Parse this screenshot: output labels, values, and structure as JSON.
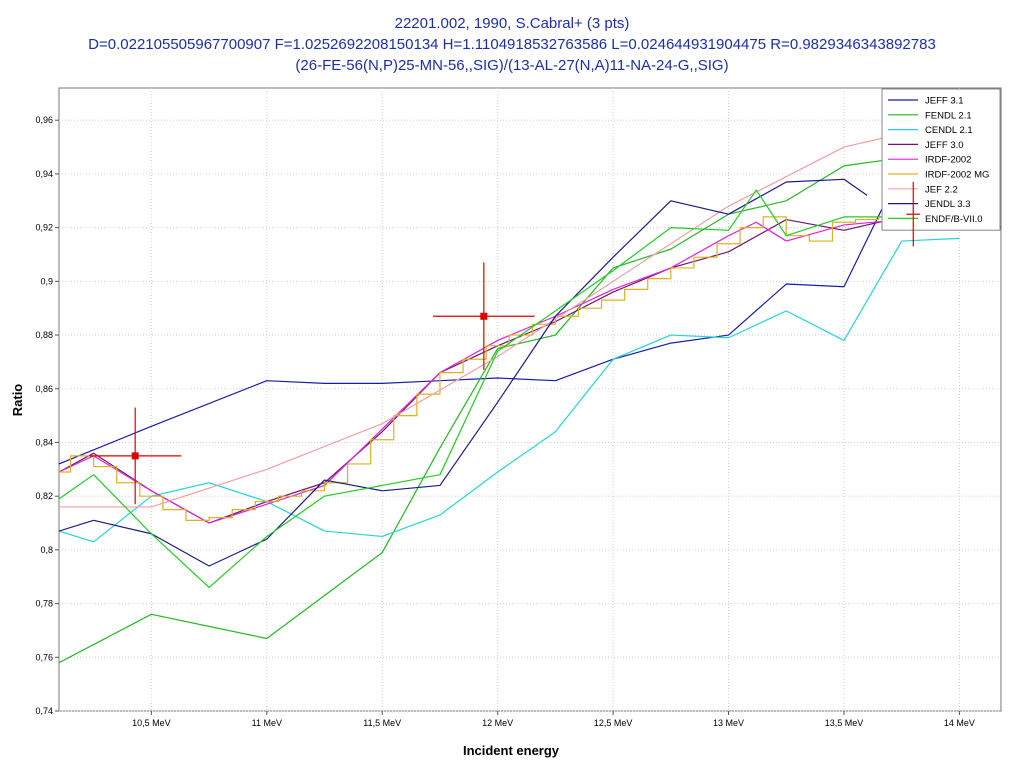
{
  "chart_data": {
    "type": "line",
    "title_lines": [
      "22201.002, 1990, S.Cabral+ (3 pts)",
      "D=0.022105505967700907 F=1.0252692208150134 H=1.1104918532763586 L=0.024644931904475 R=0.9829346343892783",
      "(26-FE-56(N,P)25-MN-56,,SIG)/(13-AL-27(N,A)11-NA-24-G,,SIG)"
    ],
    "xlabel": "Incident energy",
    "ylabel": "Ratio",
    "x_unit": "MeV",
    "xlim": [
      10.1,
      14.18
    ],
    "ylim": [
      0.74,
      0.972
    ],
    "grid": true,
    "legend_position": "top-right",
    "x_ticks": [
      {
        "value": 10.5,
        "label": "10,5 MeV"
      },
      {
        "value": 11.0,
        "label": "11 MeV"
      },
      {
        "value": 11.5,
        "label": "11,5 MeV"
      },
      {
        "value": 12.0,
        "label": "12 MeV"
      },
      {
        "value": 12.5,
        "label": "12,5 MeV"
      },
      {
        "value": 13.0,
        "label": "13 MeV"
      },
      {
        "value": 13.5,
        "label": "13,5 MeV"
      },
      {
        "value": 14.0,
        "label": "14 MeV"
      }
    ],
    "y_ticks": [
      {
        "value": 0.74,
        "label": "0,74"
      },
      {
        "value": 0.76,
        "label": "0,76"
      },
      {
        "value": 0.78,
        "label": "0,78"
      },
      {
        "value": 0.8,
        "label": "0,8"
      },
      {
        "value": 0.82,
        "label": "0,82"
      },
      {
        "value": 0.84,
        "label": "0,84"
      },
      {
        "value": 0.86,
        "label": "0,86"
      },
      {
        "value": 0.88,
        "label": "0,88"
      },
      {
        "value": 0.9,
        "label": "0,9"
      },
      {
        "value": 0.92,
        "label": "0,92"
      },
      {
        "value": 0.94,
        "label": "0,94"
      },
      {
        "value": 0.96,
        "label": "0,96"
      }
    ],
    "series": [
      {
        "name": "JEFF 3.1",
        "color": "#1c1caa",
        "x": [
          10.1,
          10.5,
          11.0,
          11.25,
          11.5,
          11.75,
          12.0,
          12.25,
          12.5,
          12.75,
          13.0,
          13.25,
          13.5,
          13.75,
          14.0,
          14.18
        ],
        "y": [
          0.832,
          0.846,
          0.863,
          0.862,
          0.862,
          0.863,
          0.864,
          0.863,
          0.871,
          0.877,
          0.88,
          0.899,
          0.898,
          0.942,
          0.938,
          0.92
        ]
      },
      {
        "name": "FENDL 2.1",
        "color": "#22b822",
        "x": [
          10.1,
          10.5,
          11.0,
          11.25,
          11.5,
          11.75,
          12.0,
          12.25,
          12.5,
          12.75,
          13.0,
          13.25,
          13.5,
          13.75,
          14.0
        ],
        "y": [
          0.758,
          0.776,
          0.767,
          0.783,
          0.799,
          0.838,
          0.875,
          0.88,
          0.905,
          0.912,
          0.925,
          0.93,
          0.943,
          0.946,
          0.948
        ]
      },
      {
        "name": "CENDL 2.1",
        "color": "#26d4d4",
        "x": [
          10.1,
          10.25,
          10.5,
          10.75,
          11.0,
          11.25,
          11.5,
          11.75,
          12.0,
          12.25,
          12.5,
          12.75,
          13.0,
          13.25,
          13.5,
          13.75,
          14.0
        ],
        "y": [
          0.807,
          0.803,
          0.82,
          0.825,
          0.818,
          0.807,
          0.805,
          0.813,
          0.829,
          0.844,
          0.871,
          0.88,
          0.879,
          0.889,
          0.878,
          0.915,
          0.916
        ]
      },
      {
        "name": "JEFF 3.0",
        "color": "#6a1a6a",
        "x": [
          10.1,
          10.25,
          10.5,
          10.75,
          11.0,
          11.25,
          11.5,
          11.75,
          12.0,
          12.25,
          12.5,
          12.75,
          13.0,
          13.25,
          13.5,
          13.75,
          14.0
        ],
        "y": [
          0.829,
          0.836,
          0.822,
          0.81,
          0.818,
          0.825,
          0.844,
          0.866,
          0.876,
          0.885,
          0.896,
          0.905,
          0.911,
          0.923,
          0.919,
          0.924,
          0.925
        ]
      },
      {
        "name": "IRDF-2002",
        "color": "#e020e0",
        "x": [
          10.1,
          10.25,
          10.5,
          10.75,
          11.0,
          11.25,
          11.5,
          11.75,
          12.0,
          12.25,
          12.5,
          12.75,
          13.0,
          13.12,
          13.25,
          13.5,
          13.75
        ],
        "y": [
          0.829,
          0.835,
          0.822,
          0.81,
          0.817,
          0.824,
          0.845,
          0.866,
          0.878,
          0.887,
          0.897,
          0.905,
          0.917,
          0.922,
          0.915,
          0.921,
          0.923
        ]
      },
      {
        "name": "IRDF-2002 MG",
        "color": "#e0b020",
        "step_edges": [
          10.1,
          10.15,
          10.25,
          10.35,
          10.45,
          10.55,
          10.65,
          10.75,
          10.85,
          10.95,
          11.05,
          11.15,
          11.25,
          11.35,
          11.45,
          11.55,
          11.65,
          11.75,
          11.85,
          11.95,
          12.05,
          12.15,
          12.25,
          12.35,
          12.45,
          12.55,
          12.65,
          12.75,
          12.85,
          12.95,
          13.05,
          13.15,
          13.25,
          13.35,
          13.45,
          13.55,
          13.65,
          13.75
        ],
        "step_values": [
          0.829,
          0.835,
          0.831,
          0.825,
          0.82,
          0.815,
          0.811,
          0.812,
          0.815,
          0.818,
          0.82,
          0.822,
          0.825,
          0.832,
          0.841,
          0.85,
          0.858,
          0.866,
          0.871,
          0.876,
          0.88,
          0.884,
          0.887,
          0.89,
          0.893,
          0.897,
          0.901,
          0.905,
          0.909,
          0.914,
          0.92,
          0.924,
          0.917,
          0.915,
          0.922,
          0.923,
          0.924
        ]
      },
      {
        "name": "JEF 2.2",
        "color": "#f0a0a0",
        "x": [
          10.1,
          10.5,
          11.0,
          11.5,
          12.0,
          12.5,
          13.0,
          13.5,
          14.0
        ],
        "y": [
          0.816,
          0.816,
          0.83,
          0.847,
          0.872,
          0.9,
          0.928,
          0.95,
          0.96
        ]
      },
      {
        "name": "JENDL 3.3",
        "color": "#1a1a8a",
        "x": [
          10.1,
          10.25,
          10.5,
          10.75,
          11.0,
          11.25,
          11.5,
          11.75,
          12.0,
          12.25,
          12.5,
          12.75,
          13.0,
          13.25,
          13.5,
          13.6
        ],
        "y": [
          0.807,
          0.811,
          0.806,
          0.794,
          0.804,
          0.826,
          0.822,
          0.824,
          0.855,
          0.887,
          0.909,
          0.93,
          0.925,
          0.937,
          0.938,
          0.932
        ]
      },
      {
        "name": "ENDF/B-VII.0",
        "color": "#22cc22",
        "x": [
          10.1,
          10.25,
          10.5,
          10.75,
          11.0,
          11.25,
          11.5,
          11.75,
          12.0,
          12.25,
          12.5,
          12.75,
          13.0,
          13.12,
          13.25,
          13.5,
          13.75,
          14.0
        ],
        "y": [
          0.819,
          0.828,
          0.806,
          0.786,
          0.805,
          0.82,
          0.824,
          0.828,
          0.874,
          0.889,
          0.904,
          0.92,
          0.919,
          0.934,
          0.917,
          0.924,
          0.924,
          0.924
        ]
      }
    ],
    "measurements": {
      "color": "#dd0000",
      "points": [
        {
          "x": 10.43,
          "y": 0.835,
          "x_err": 0.2,
          "y_err": 0.018
        },
        {
          "x": 11.94,
          "y": 0.887,
          "x_err": 0.22,
          "y_err": 0.02
        },
        {
          "x": 13.8,
          "y": 0.925,
          "x_err": 0.03,
          "y_err": 0.012
        }
      ]
    }
  }
}
